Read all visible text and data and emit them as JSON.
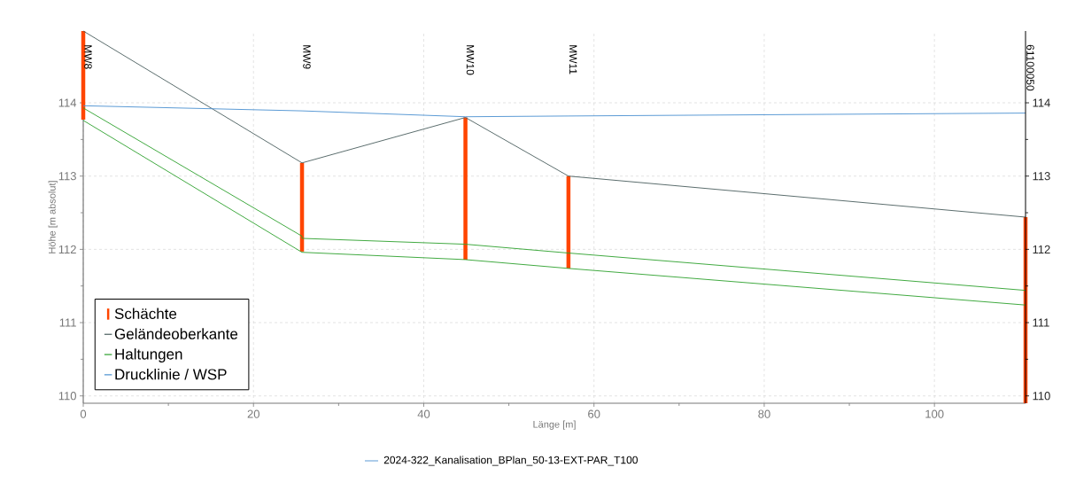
{
  "chart_data": {
    "type": "line",
    "xlabel": "Länge [m]",
    "ylabel": "Höhe [m absolut]",
    "xlim": [
      0,
      110.7
    ],
    "xticks": [
      0,
      20,
      40,
      60,
      80,
      100
    ],
    "ylim": [
      109.9,
      114.98
    ],
    "yticks": [
      110,
      111,
      112,
      113,
      114
    ],
    "y2lim": [
      109.9,
      114.98
    ],
    "y2ticks": [
      110,
      111,
      112,
      113,
      114
    ],
    "grid": true,
    "legend": "bottom left",
    "marker": "none",
    "line_style": "solid",
    "series": [
      {
        "name": "Schächte",
        "type": "bar",
        "color": "#ff4500",
        "x": [
          0,
          25.7,
          44.9,
          57.0,
          110.7
        ],
        "base": [
          113.77,
          111.97,
          111.86,
          111.74,
          109.9
        ],
        "values": [
          1.21,
          1.21,
          1.94,
          1.26,
          2.54
        ]
      },
      {
        "name": "Geländeoberkante",
        "color": "#4a5d5d",
        "x": [
          0,
          25.7,
          44.9,
          57.0,
          110.7
        ],
        "values": [
          114.98,
          113.18,
          113.8,
          113.0,
          112.44
        ]
      },
      {
        "name": "Haltungen",
        "color": "#2ca02c",
        "x": [
          0,
          25.7,
          25.7,
          44.9,
          57.0,
          110.7
        ],
        "values": [
          113.93,
          112.18,
          112.15,
          112.07,
          111.95,
          111.44
        ]
      },
      {
        "color": "#2ca02c",
        "x": [
          0,
          25.7,
          44.9,
          57.0,
          110.7
        ],
        "values": [
          113.76,
          111.96,
          111.86,
          111.74,
          111.24
        ]
      },
      {
        "name": "Drucklinie / WSP",
        "color": "#4a90d0",
        "x": [
          0,
          25.7,
          44.9,
          57.0,
          110.7
        ],
        "values": [
          113.96,
          113.89,
          113.81,
          113.82,
          113.86
        ]
      }
    ],
    "annotations": [
      "MW8",
      "MW9",
      "MW10",
      "MW11",
      "61100050",
      "2024-322_Kanalisation_BPlan_50-13-EXT-PAR_T100"
    ]
  }
}
